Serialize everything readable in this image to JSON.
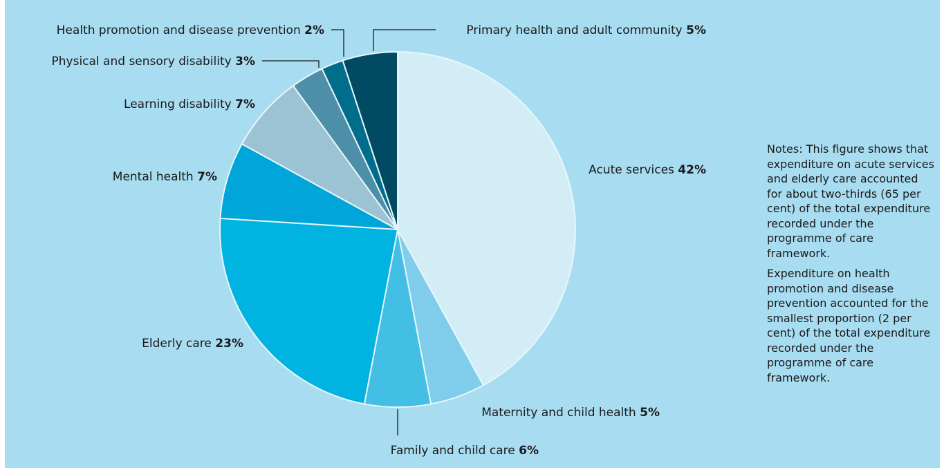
{
  "chart_data": {
    "type": "pie",
    "categories": [
      "Acute services",
      "Maternity and child health",
      "Family and child care",
      "Elderly care",
      "Mental health",
      "Learning disability",
      "Physical and sensory disability",
      "Health promotion and disease prevention",
      "Primary health and adult community"
    ],
    "values": [
      42,
      5,
      6,
      23,
      7,
      7,
      3,
      2,
      5
    ],
    "value_labels": [
      "42%",
      "5%",
      "6%",
      "23%",
      "7%",
      "7%",
      "3%",
      "2%",
      "5%"
    ],
    "colors": [
      "#d3edf7",
      "#7fcdea",
      "#43bfe6",
      "#00b3e0",
      "#00a5d9",
      "#9cc3d4",
      "#4d8fa8",
      "#006d8a",
      "#004b63"
    ],
    "start": "12 o'clock",
    "direction": "clockwise"
  },
  "notes": {
    "para1": "Notes: This figure shows that expenditure on acute services and elderly care accounted for about two-thirds (65 per cent) of the total expenditure recorded under the programme of care framework.",
    "para2": "Expenditure on health promotion and disease prevention accounted for the smallest proportion (2 per cent) of the total expenditure recorded under the programme of care framework."
  }
}
